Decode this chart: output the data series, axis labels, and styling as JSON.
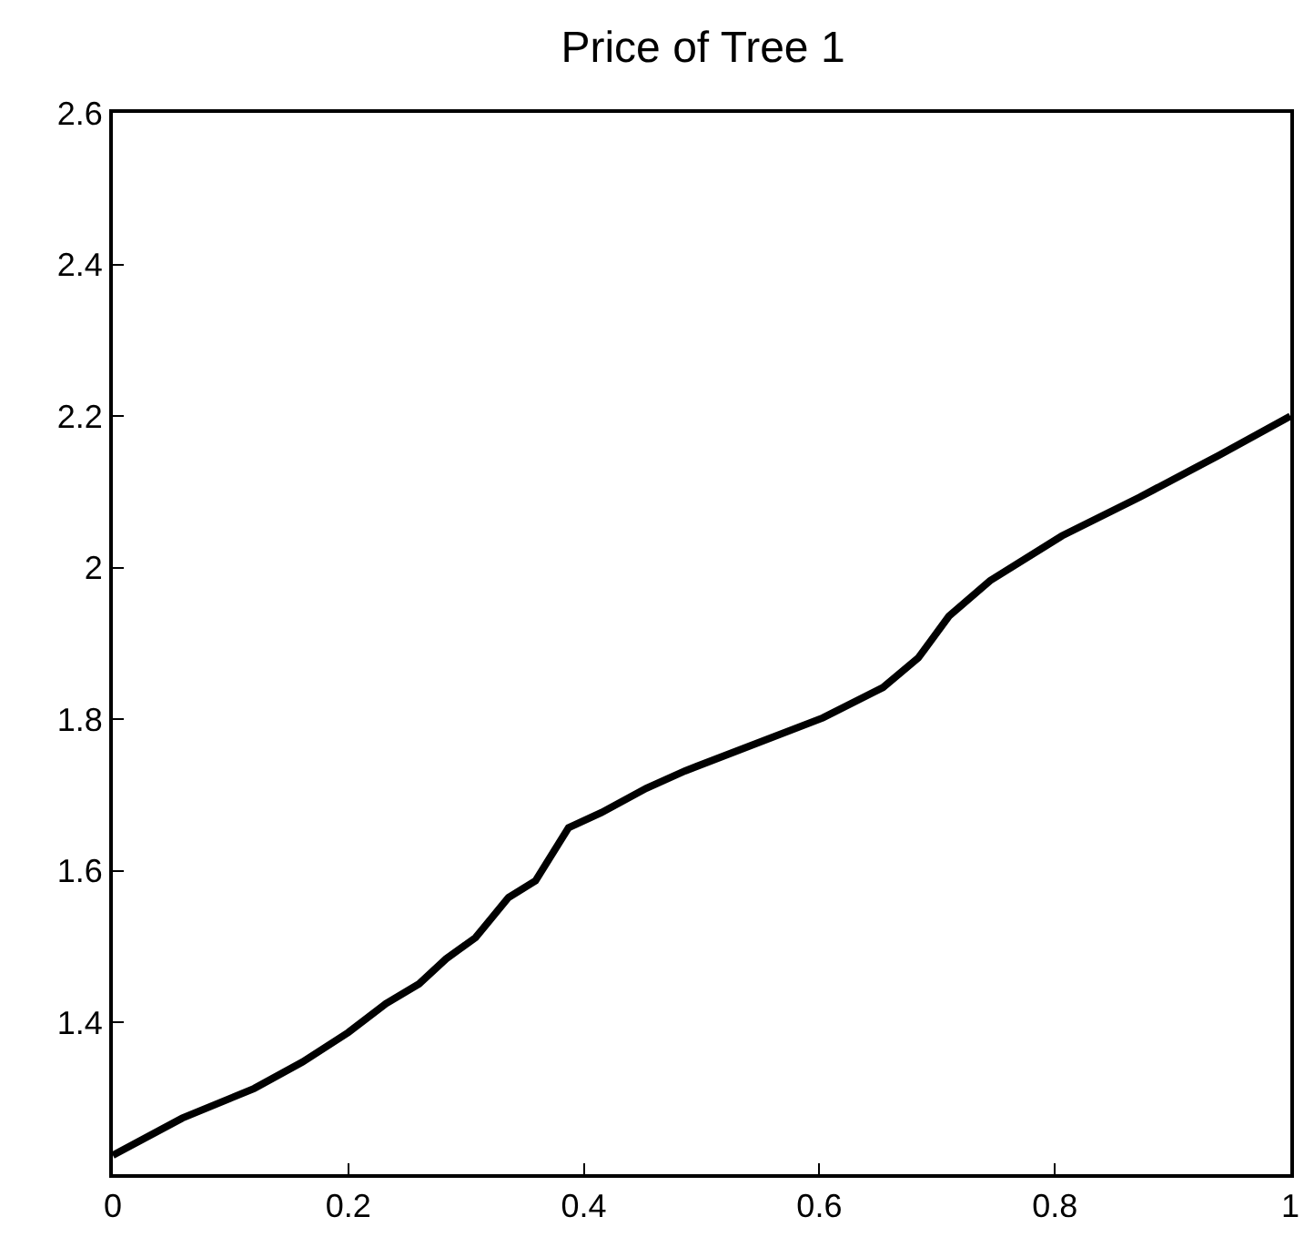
{
  "chart_data": {
    "type": "line",
    "title": "Price of Tree 1",
    "x": [
      0,
      0.059,
      0.12,
      0.161,
      0.2,
      0.232,
      0.26,
      0.283,
      0.308,
      0.336,
      0.359,
      0.387,
      0.415,
      0.453,
      0.486,
      0.603,
      0.654,
      0.684,
      0.71,
      0.745,
      0.806,
      0.872,
      0.939,
      1.0
    ],
    "series": [
      {
        "color": "#000000",
        "values": [
          1.225,
          1.274,
          1.313,
          1.348,
          1.387,
          1.425,
          1.451,
          1.484,
          1.512,
          1.565,
          1.587,
          1.657,
          1.677,
          1.709,
          1.732,
          1.802,
          1.842,
          1.881,
          1.936,
          1.983,
          2.042,
          2.093,
          2.148,
          2.2
        ]
      }
    ],
    "xlim": [
      0,
      1
    ],
    "xticks": [
      0,
      0.2,
      0.4,
      0.6,
      0.8,
      1
    ],
    "ylim": [
      1.2,
      2.6
    ],
    "yticks": [
      1.4,
      1.6,
      1.8,
      2,
      2.2,
      2.4,
      2.6
    ],
    "marker": "none",
    "line_style": "solid"
  }
}
